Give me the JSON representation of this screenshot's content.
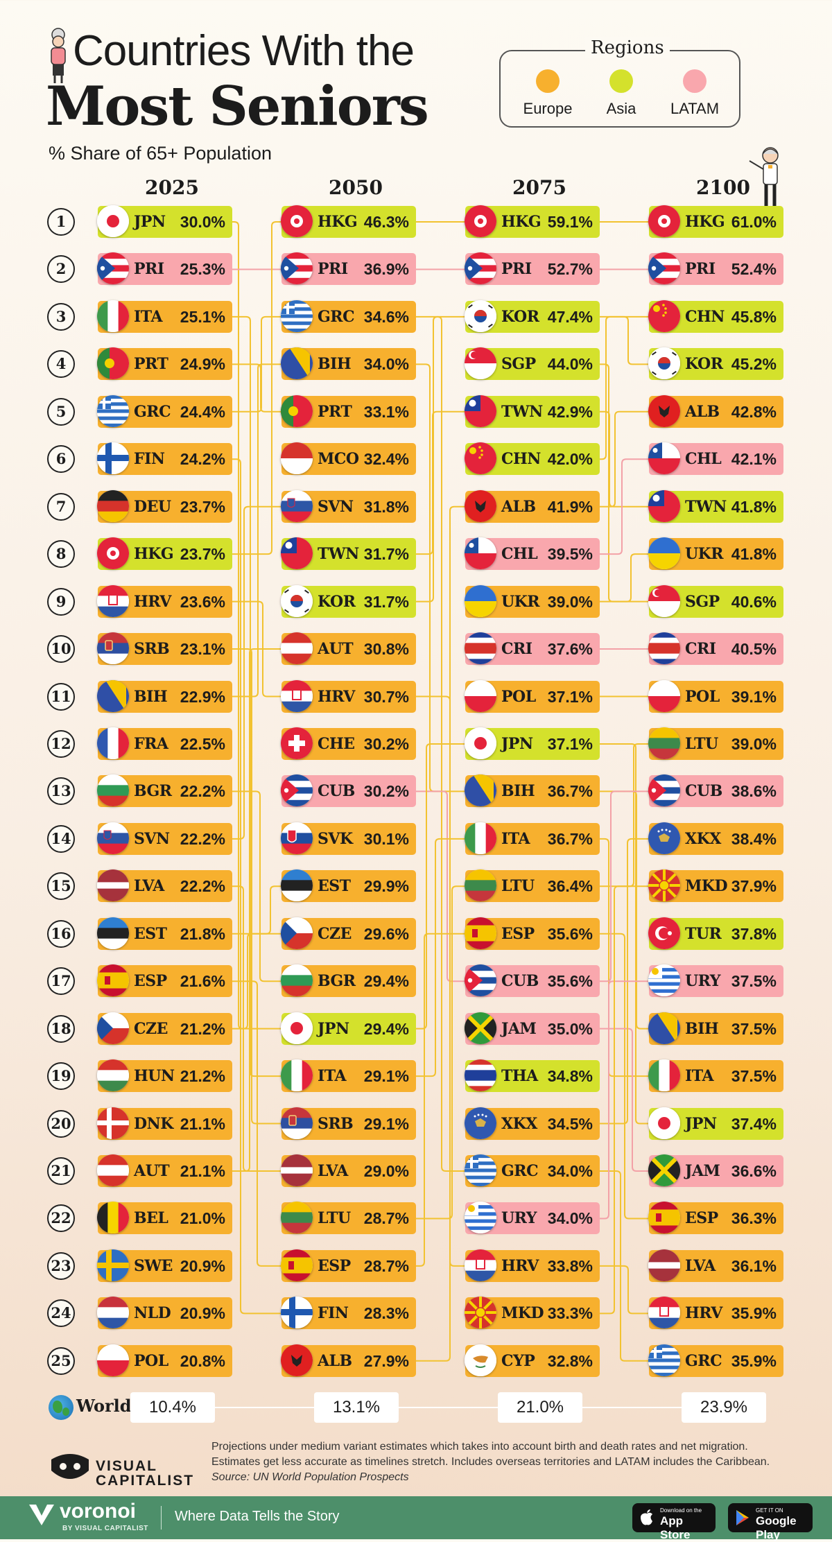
{
  "title_line1": "Countries With the",
  "title_line2": "Most Seniors",
  "subtitle": "% Share of 65+ Population",
  "legend": {
    "title": "Regions",
    "items": [
      {
        "label": "Europe",
        "color": "#f7b02e"
      },
      {
        "label": "Asia",
        "color": "#d4e12c"
      },
      {
        "label": "LATAM",
        "color": "#f9a7ad"
      }
    ]
  },
  "colors": {
    "europe": "#f7b02e",
    "asia": "#d4e12c",
    "latam": "#f9a7ad",
    "line": "#f2c230",
    "connector_latam": "#f3a1a7"
  },
  "chart_data": {
    "type": "table",
    "ranks": [
      1,
      2,
      3,
      4,
      5,
      6,
      7,
      8,
      9,
      10,
      11,
      12,
      13,
      14,
      15,
      16,
      17,
      18,
      19,
      20,
      21,
      22,
      23,
      24,
      25
    ],
    "years": [
      "2025",
      "2050",
      "2075",
      "2100"
    ],
    "columns": [
      [
        {
          "code": "JPN",
          "value": "30.0%",
          "region": "asia"
        },
        {
          "code": "PRI",
          "value": "25.3%",
          "region": "latam"
        },
        {
          "code": "ITA",
          "value": "25.1%",
          "region": "europe"
        },
        {
          "code": "PRT",
          "value": "24.9%",
          "region": "europe"
        },
        {
          "code": "GRC",
          "value": "24.4%",
          "region": "europe"
        },
        {
          "code": "FIN",
          "value": "24.2%",
          "region": "europe"
        },
        {
          "code": "DEU",
          "value": "23.7%",
          "region": "europe"
        },
        {
          "code": "HKG",
          "value": "23.7%",
          "region": "asia"
        },
        {
          "code": "HRV",
          "value": "23.6%",
          "region": "europe"
        },
        {
          "code": "SRB",
          "value": "23.1%",
          "region": "europe"
        },
        {
          "code": "BIH",
          "value": "22.9%",
          "region": "europe"
        },
        {
          "code": "FRA",
          "value": "22.5%",
          "region": "europe"
        },
        {
          "code": "BGR",
          "value": "22.2%",
          "region": "europe"
        },
        {
          "code": "SVN",
          "value": "22.2%",
          "region": "europe"
        },
        {
          "code": "LVA",
          "value": "22.2%",
          "region": "europe"
        },
        {
          "code": "EST",
          "value": "21.8%",
          "region": "europe"
        },
        {
          "code": "ESP",
          "value": "21.6%",
          "region": "europe"
        },
        {
          "code": "CZE",
          "value": "21.2%",
          "region": "europe"
        },
        {
          "code": "HUN",
          "value": "21.2%",
          "region": "europe"
        },
        {
          "code": "DNK",
          "value": "21.1%",
          "region": "europe"
        },
        {
          "code": "AUT",
          "value": "21.1%",
          "region": "europe"
        },
        {
          "code": "BEL",
          "value": "21.0%",
          "region": "europe"
        },
        {
          "code": "SWE",
          "value": "20.9%",
          "region": "europe"
        },
        {
          "code": "NLD",
          "value": "20.9%",
          "region": "europe"
        },
        {
          "code": "POL",
          "value": "20.8%",
          "region": "europe"
        }
      ],
      [
        {
          "code": "HKG",
          "value": "46.3%",
          "region": "asia"
        },
        {
          "code": "PRI",
          "value": "36.9%",
          "region": "latam"
        },
        {
          "code": "GRC",
          "value": "34.6%",
          "region": "europe"
        },
        {
          "code": "BIH",
          "value": "34.0%",
          "region": "europe"
        },
        {
          "code": "PRT",
          "value": "33.1%",
          "region": "europe"
        },
        {
          "code": "MCO",
          "value": "32.4%",
          "region": "europe"
        },
        {
          "code": "SVN",
          "value": "31.8%",
          "region": "europe"
        },
        {
          "code": "TWN",
          "value": "31.7%",
          "region": "asia"
        },
        {
          "code": "KOR",
          "value": "31.7%",
          "region": "asia"
        },
        {
          "code": "AUT",
          "value": "30.8%",
          "region": "europe"
        },
        {
          "code": "HRV",
          "value": "30.7%",
          "region": "europe"
        },
        {
          "code": "CHE",
          "value": "30.2%",
          "region": "europe"
        },
        {
          "code": "CUB",
          "value": "30.2%",
          "region": "latam"
        },
        {
          "code": "SVK",
          "value": "30.1%",
          "region": "europe"
        },
        {
          "code": "EST",
          "value": "29.9%",
          "region": "europe"
        },
        {
          "code": "CZE",
          "value": "29.6%",
          "region": "europe"
        },
        {
          "code": "BGR",
          "value": "29.4%",
          "region": "europe"
        },
        {
          "code": "JPN",
          "value": "29.4%",
          "region": "asia"
        },
        {
          "code": "ITA",
          "value": "29.1%",
          "region": "europe"
        },
        {
          "code": "SRB",
          "value": "29.1%",
          "region": "europe"
        },
        {
          "code": "LVA",
          "value": "29.0%",
          "region": "europe"
        },
        {
          "code": "LTU",
          "value": "28.7%",
          "region": "europe"
        },
        {
          "code": "ESP",
          "value": "28.7%",
          "region": "europe"
        },
        {
          "code": "FIN",
          "value": "28.3%",
          "region": "europe"
        },
        {
          "code": "ALB",
          "value": "27.9%",
          "region": "europe"
        }
      ],
      [
        {
          "code": "HKG",
          "value": "59.1%",
          "region": "asia"
        },
        {
          "code": "PRI",
          "value": "52.7%",
          "region": "latam"
        },
        {
          "code": "KOR",
          "value": "47.4%",
          "region": "asia"
        },
        {
          "code": "SGP",
          "value": "44.0%",
          "region": "asia"
        },
        {
          "code": "TWN",
          "value": "42.9%",
          "region": "asia"
        },
        {
          "code": "CHN",
          "value": "42.0%",
          "region": "asia"
        },
        {
          "code": "ALB",
          "value": "41.9%",
          "region": "europe"
        },
        {
          "code": "CHL",
          "value": "39.5%",
          "region": "latam"
        },
        {
          "code": "UKR",
          "value": "39.0%",
          "region": "europe"
        },
        {
          "code": "CRI",
          "value": "37.6%",
          "region": "latam"
        },
        {
          "code": "POL",
          "value": "37.1%",
          "region": "europe"
        },
        {
          "code": "JPN",
          "value": "37.1%",
          "region": "asia"
        },
        {
          "code": "BIH",
          "value": "36.7%",
          "region": "europe"
        },
        {
          "code": "ITA",
          "value": "36.7%",
          "region": "europe"
        },
        {
          "code": "LTU",
          "value": "36.4%",
          "region": "europe"
        },
        {
          "code": "ESP",
          "value": "35.6%",
          "region": "europe"
        },
        {
          "code": "CUB",
          "value": "35.6%",
          "region": "latam"
        },
        {
          "code": "JAM",
          "value": "35.0%",
          "region": "latam"
        },
        {
          "code": "THA",
          "value": "34.8%",
          "region": "asia"
        },
        {
          "code": "XKX",
          "value": "34.5%",
          "region": "europe"
        },
        {
          "code": "GRC",
          "value": "34.0%",
          "region": "europe"
        },
        {
          "code": "URY",
          "value": "34.0%",
          "region": "latam"
        },
        {
          "code": "HRV",
          "value": "33.8%",
          "region": "europe"
        },
        {
          "code": "MKD",
          "value": "33.3%",
          "region": "europe"
        },
        {
          "code": "CYP",
          "value": "32.8%",
          "region": "europe"
        }
      ],
      [
        {
          "code": "HKG",
          "value": "61.0%",
          "region": "asia"
        },
        {
          "code": "PRI",
          "value": "52.4%",
          "region": "latam"
        },
        {
          "code": "CHN",
          "value": "45.8%",
          "region": "asia"
        },
        {
          "code": "KOR",
          "value": "45.2%",
          "region": "asia"
        },
        {
          "code": "ALB",
          "value": "42.8%",
          "region": "europe"
        },
        {
          "code": "CHL",
          "value": "42.1%",
          "region": "latam"
        },
        {
          "code": "TWN",
          "value": "41.8%",
          "region": "asia"
        },
        {
          "code": "UKR",
          "value": "41.8%",
          "region": "europe"
        },
        {
          "code": "SGP",
          "value": "40.6%",
          "region": "asia"
        },
        {
          "code": "CRI",
          "value": "40.5%",
          "region": "latam"
        },
        {
          "code": "POL",
          "value": "39.1%",
          "region": "europe"
        },
        {
          "code": "LTU",
          "value": "39.0%",
          "region": "europe"
        },
        {
          "code": "CUB",
          "value": "38.6%",
          "region": "latam"
        },
        {
          "code": "XKX",
          "value": "38.4%",
          "region": "europe"
        },
        {
          "code": "MKD",
          "value": "37.9%",
          "region": "europe"
        },
        {
          "code": "TUR",
          "value": "37.8%",
          "region": "asia"
        },
        {
          "code": "URY",
          "value": "37.5%",
          "region": "latam"
        },
        {
          "code": "BIH",
          "value": "37.5%",
          "region": "europe"
        },
        {
          "code": "ITA",
          "value": "37.5%",
          "region": "europe"
        },
        {
          "code": "JPN",
          "value": "37.4%",
          "region": "asia"
        },
        {
          "code": "JAM",
          "value": "36.6%",
          "region": "latam"
        },
        {
          "code": "ESP",
          "value": "36.3%",
          "region": "europe"
        },
        {
          "code": "LVA",
          "value": "36.1%",
          "region": "europe"
        },
        {
          "code": "HRV",
          "value": "35.9%",
          "region": "europe"
        },
        {
          "code": "GRC",
          "value": "35.9%",
          "region": "europe"
        }
      ]
    ],
    "world": {
      "label": "World",
      "values": [
        "10.4%",
        "13.1%",
        "21.0%",
        "23.9%"
      ]
    }
  },
  "notes": {
    "line1": "Projections under medium variant estimates which takes into account birth and death rates and net migration.",
    "line2": "Estimates get less accurate as timelines stretch. Includes overseas territories and LATAM includes the Caribbean.",
    "source": "Source: UN World Population Prospects"
  },
  "brand": {
    "visual": "VISUAL",
    "capitalist": "CAPITALIST"
  },
  "footer": {
    "brand": "voronoi",
    "by": "BY VISUAL CAPITALIST",
    "tagline": "Where Data Tells the Story",
    "appstore_small": "Download on the",
    "appstore_large": "App Store",
    "gplay_small": "GET IT ON",
    "gplay_large": "Google Play"
  }
}
